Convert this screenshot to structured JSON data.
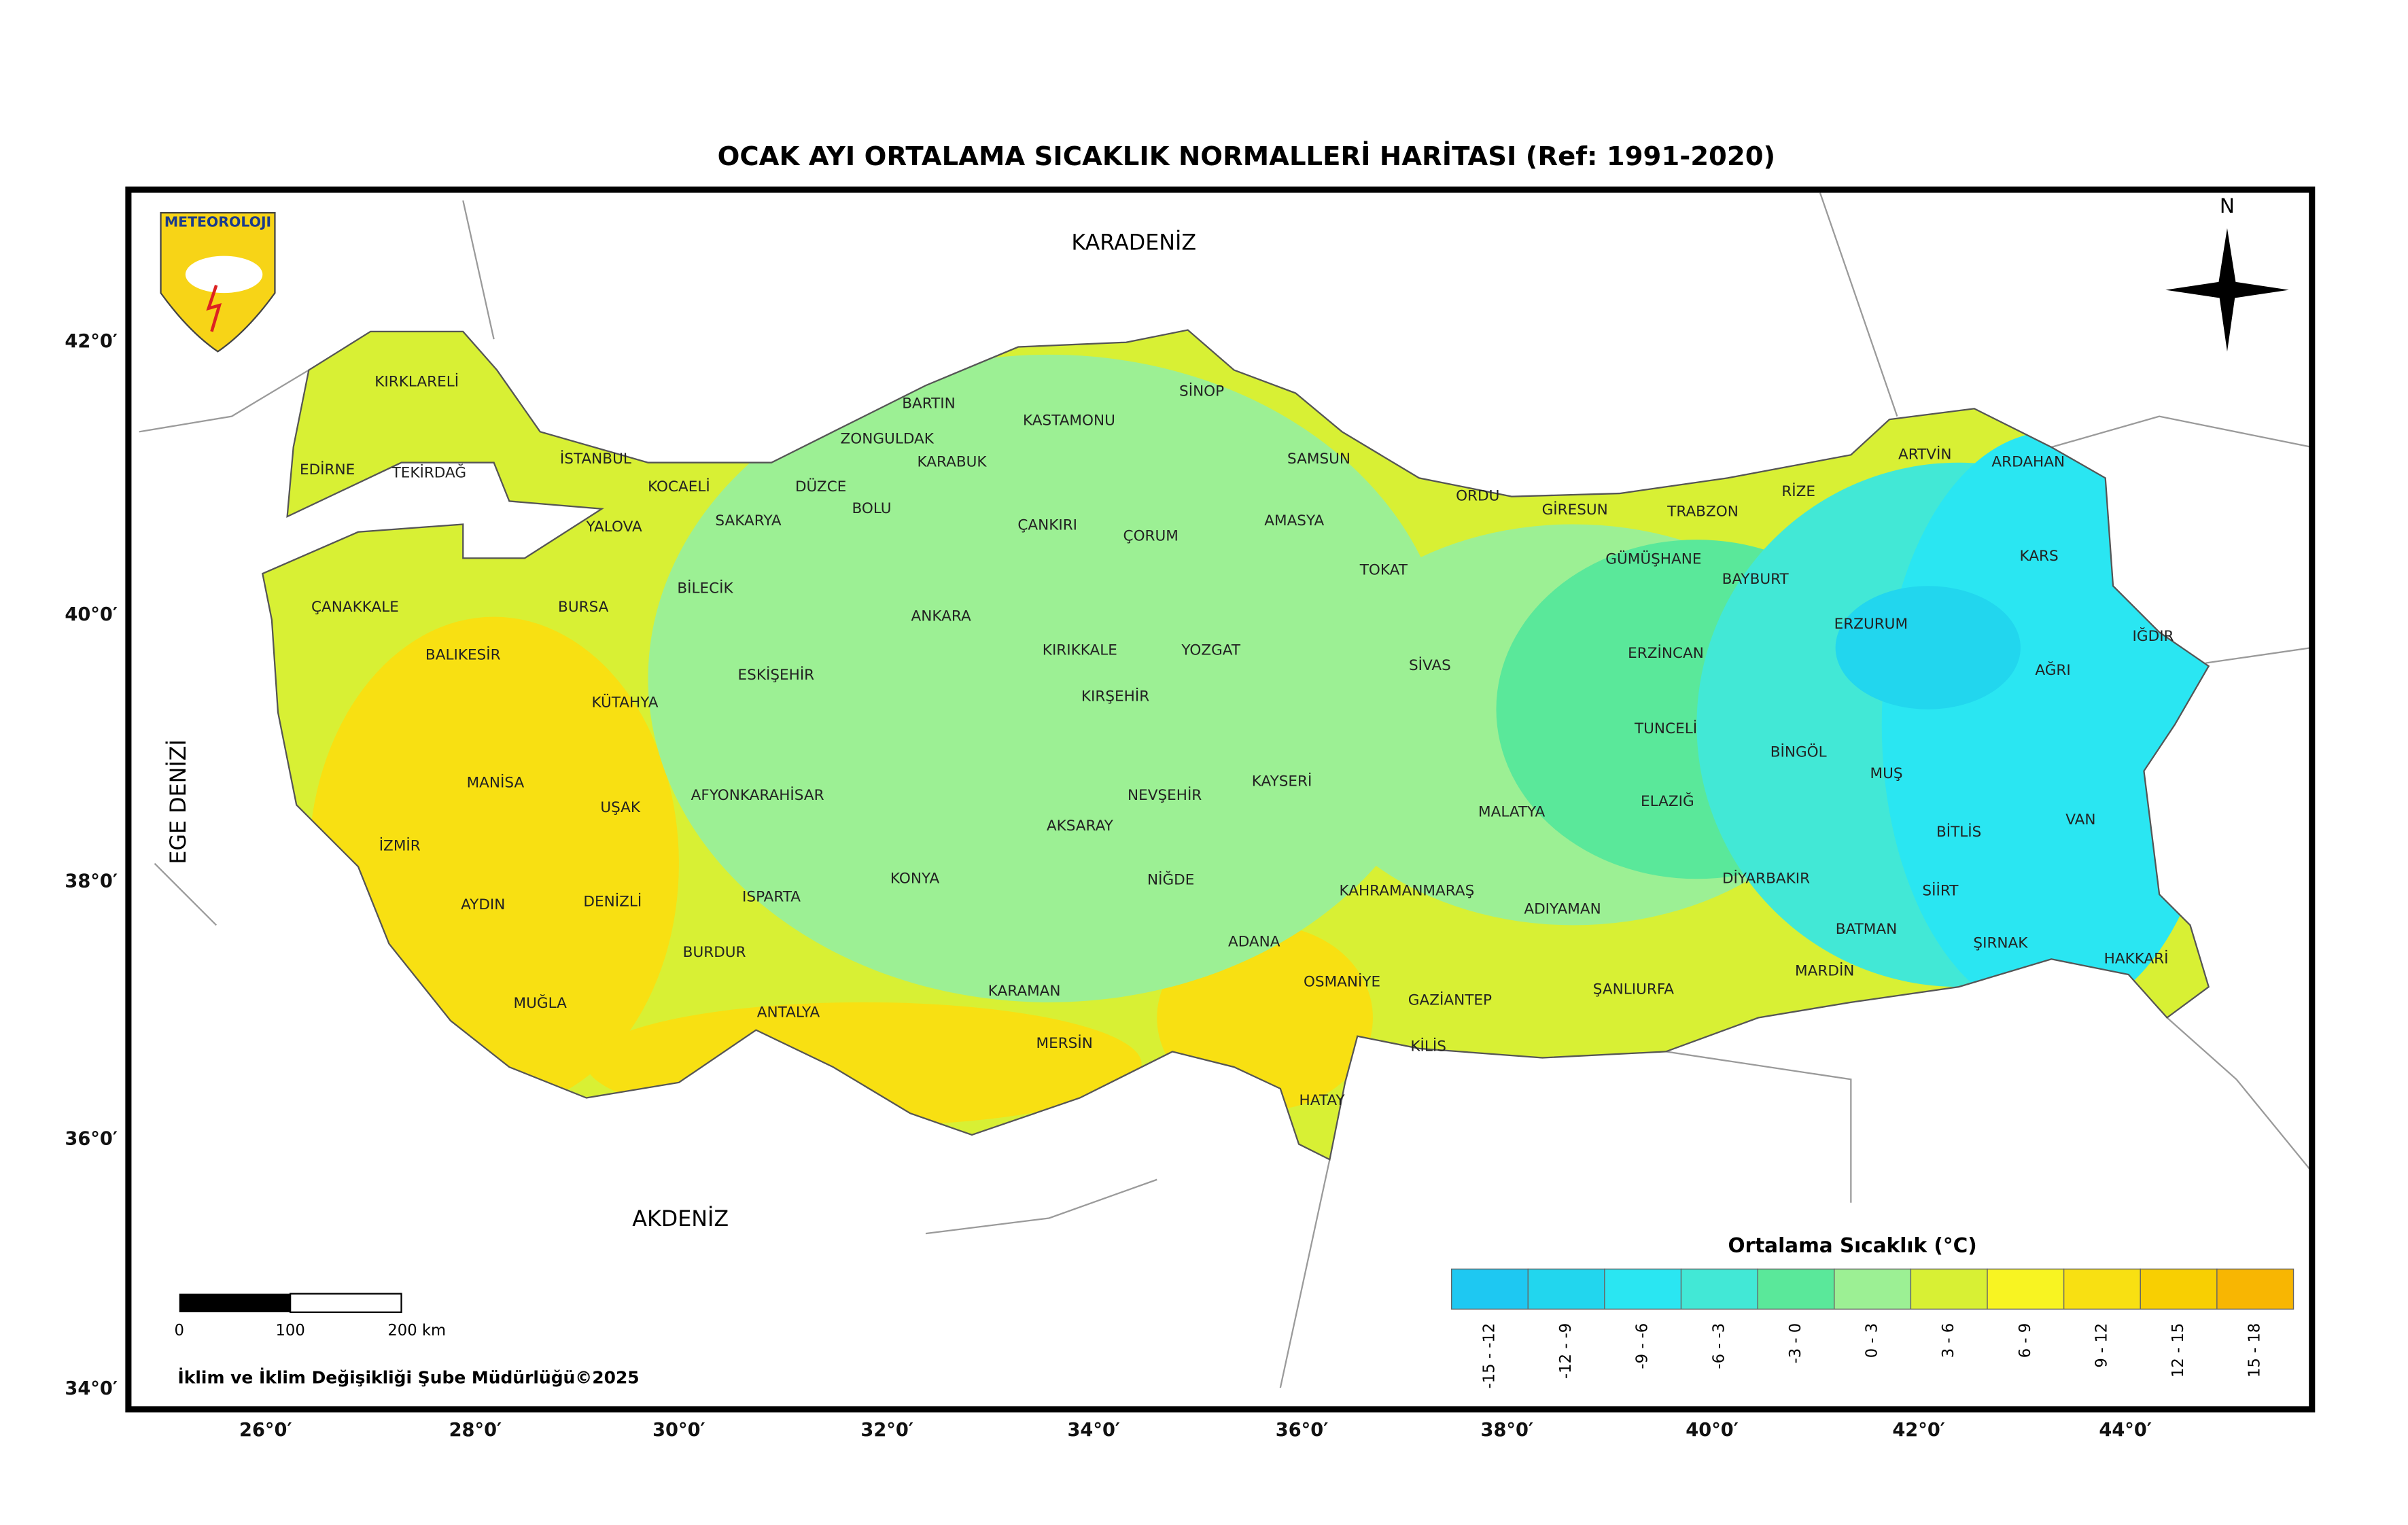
{
  "header": {
    "title": "OCAK AYI ORTALAMA SICAKLIK NORMALLERİ HARİTASI (Ref: 1991-2020)"
  },
  "logo": {
    "text": "METEOROLOJI"
  },
  "compass": {
    "label": "N"
  },
  "seas": [
    "KARADENİZ",
    "AKDENİZ",
    "EGE DENİZİ"
  ],
  "provinces": [
    "KIRKLARELİ",
    "EDİRNE",
    "TEKİRDAĞ",
    "İSTANBUL",
    "KOCAELİ",
    "DÜZCE",
    "YALOVA",
    "SAKARYA",
    "BARTIN",
    "ZONGULDAK",
    "KARABUK",
    "BOLU",
    "KASTAMONU",
    "SİNOP",
    "SAMSUN",
    "ORDU",
    "GİRESUN",
    "TRABZON",
    "RİZE",
    "ARTVİN",
    "ARDAHAN",
    "ÇANAKKALE",
    "BURSA",
    "BİLECİK",
    "ÇANKIRI",
    "ÇORUM",
    "AMASYA",
    "TOKAT",
    "GÜMÜŞHANE",
    "BAYBURT",
    "KARS",
    "ERZURUM",
    "IĞDIR",
    "AĞRI",
    "ANKARA",
    "BALIKESİR",
    "KÜTAHYA",
    "ESKİŞEHİR",
    "KIRIKKALE",
    "YOZGAT",
    "SİVAS",
    "ERZİNCAN",
    "KIRŞEHİR",
    "TUNCELİ",
    "BİNGÖL",
    "MUŞ",
    "MANİSA",
    "UŞAK",
    "AFYONKARAHİSAR",
    "NEVŞEHİR",
    "KAYSERİ",
    "MALATYA",
    "ELAZIĞ",
    "BİTLİS",
    "VAN",
    "İZMİR",
    "AKSARAY",
    "DENİZLİ",
    "AYDIN",
    "ISPARTA",
    "KONYA",
    "NİĞDE",
    "KAHRAMANMARAŞ",
    "DİYARBAKIR",
    "SİİRT",
    "ADIYAMAN",
    "ADANA",
    "BURDUR",
    "BATMAN",
    "ŞIRNAK",
    "HAKKARİ",
    "OSMANİYE",
    "ŞANLIURFA",
    "MARDİN",
    "KARAMAN",
    "GAZİANTEP",
    "MUĞLA",
    "ANTALYA",
    "MERSİN",
    "KİLİS",
    "HATAY"
  ],
  "latitude_labels": [
    "42°0′",
    "40°0′",
    "38°0′",
    "36°0′",
    "34°0′"
  ],
  "longitude_labels": [
    "26°0′",
    "28°0′",
    "30°0′",
    "32°0′",
    "34°0′",
    "36°0′",
    "38°0′",
    "40°0′",
    "42°0′",
    "44°0′"
  ],
  "legend": {
    "title": "Ortalama Sıcaklık (°C)",
    "bins": [
      {
        "label": "-15 - -12",
        "color": "#1ec8f2"
      },
      {
        "label": "-12 - -9",
        "color": "#22d6ee"
      },
      {
        "label": "-9 - -6",
        "color": "#2ae6f2"
      },
      {
        "label": "-6 - -3",
        "color": "#42e8d6"
      },
      {
        "label": "-3 - 0",
        "color": "#5ae89a"
      },
      {
        "label": "0 - 3",
        "color": "#9cf094"
      },
      {
        "label": "3 - 6",
        "color": "#d8f034"
      },
      {
        "label": "6 - 9",
        "color": "#f8f422"
      },
      {
        "label": "9 - 12",
        "color": "#f8e012"
      },
      {
        "label": "12 - 15",
        "color": "#f8cf02"
      },
      {
        "label": "15 - 18",
        "color": "#f8b602"
      }
    ]
  },
  "scale_bar": {
    "labels": [
      "0",
      "100",
      "200 km"
    ]
  },
  "credit": "İklim ve İklim Değişikliği Şube Müdürlüğü©2025"
}
